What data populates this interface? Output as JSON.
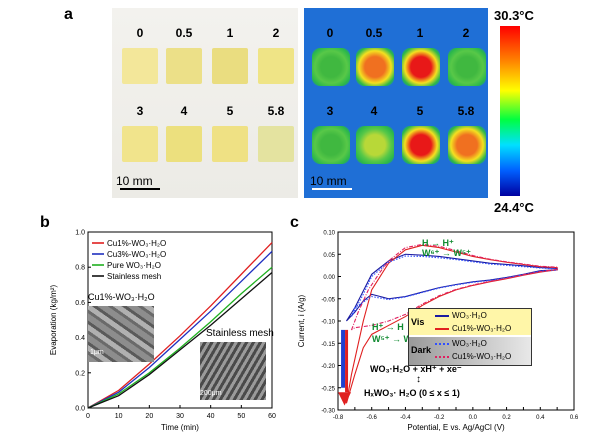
{
  "panel_a": {
    "label": "a",
    "photo_samples": [
      {
        "label": "0"
      },
      {
        "label": "0.5"
      },
      {
        "label": "1"
      },
      {
        "label": "2"
      },
      {
        "label": "3"
      },
      {
        "label": "4"
      },
      {
        "label": "5"
      },
      {
        "label": "5.8"
      }
    ],
    "photo_scalebar": "10 mm",
    "thermal_samples": [
      {
        "label": "0",
        "heat": 0.35
      },
      {
        "label": "0.5",
        "heat": 0.8
      },
      {
        "label": "1",
        "heat": 0.95
      },
      {
        "label": "2",
        "heat": 0.3
      },
      {
        "label": "3",
        "heat": 0.4
      },
      {
        "label": "4",
        "heat": 0.5
      },
      {
        "label": "5",
        "heat": 1.0
      },
      {
        "label": "5.8",
        "heat": 0.7
      }
    ],
    "thermal_scalebar": "10 mm",
    "colorbar_max": "30.3°C",
    "colorbar_min": "24.4°C"
  },
  "panel_b": {
    "label": "b",
    "inset1_title": "Cu1%-WO₃·H₂O",
    "inset1_scale": "1μm",
    "inset2_title": "Stainless mesh",
    "inset2_scale": "200μm"
  },
  "panel_c": {
    "label": "c",
    "reaction_top1": "H → H⁺",
    "reaction_top2": "W⁶⁺ → W⁵⁺",
    "reaction_mid1": "H⁺ → H",
    "reaction_mid2": "W⁵⁺ → W⁶⁺",
    "legend_vis": "Vis",
    "legend_dark": "Dark",
    "equation1": "WO₃·H₂O + xH⁺ + xe⁻",
    "equation_arrow": "↕",
    "equation2": "HₓWO₃· H₂O (0 ≤ x ≤ 1)"
  },
  "chart_data": [
    {
      "type": "line",
      "xlabel": "Time (min)",
      "ylabel": "Evaporation (kg/m²)",
      "xlim": [
        0,
        60
      ],
      "ylim": [
        0,
        1.0
      ],
      "x_ticks": [
        0,
        10,
        20,
        30,
        40,
        50,
        60
      ],
      "y_ticks": [
        0.0,
        0.2,
        0.4,
        0.6,
        0.8,
        1.0
      ],
      "legend_position": "top-left",
      "series": [
        {
          "name": "Cu1%-WO₃·H₂O",
          "color": "#e02020",
          "x": [
            0,
            10,
            20,
            30,
            40,
            50,
            60
          ],
          "y": [
            0,
            0.1,
            0.25,
            0.41,
            0.58,
            0.76,
            0.94
          ]
        },
        {
          "name": "Cu3%-WO₃·H₂O",
          "color": "#2030c0",
          "x": [
            0,
            10,
            20,
            30,
            40,
            50,
            60
          ],
          "y": [
            0,
            0.09,
            0.23,
            0.39,
            0.55,
            0.72,
            0.89
          ]
        },
        {
          "name": "Pure WO₃·H₂O",
          "color": "#20b020",
          "x": [
            0,
            10,
            20,
            30,
            40,
            50,
            60
          ],
          "y": [
            0,
            0.08,
            0.2,
            0.34,
            0.49,
            0.65,
            0.8
          ]
        },
        {
          "name": "Stainless mesh",
          "color": "#111111",
          "x": [
            0,
            10,
            20,
            30,
            40,
            50,
            60
          ],
          "y": [
            0,
            0.07,
            0.19,
            0.33,
            0.47,
            0.62,
            0.77
          ]
        }
      ]
    },
    {
      "type": "line",
      "xlabel": "Potential, E vs. Ag/AgCl (V)",
      "ylabel": "Current, i (A/g)",
      "xlim": [
        -0.8,
        0.6
      ],
      "ylim": [
        -0.3,
        0.1
      ],
      "x_ticks": [
        -0.8,
        -0.7,
        -0.6,
        -0.5,
        -0.4,
        -0.3,
        -0.2,
        -0.1,
        0.0,
        0.1,
        0.2,
        0.3,
        0.4,
        0.5,
        0.6
      ],
      "x_tick_labels": [
        "-0.8",
        "-0.7",
        "-0.6",
        "-0.5",
        "-0.4",
        "-0.3",
        "-0.2",
        "-0.1",
        "0.0",
        "0.1",
        "0.2",
        "0.3",
        "0.4",
        "0.5",
        "0.6"
      ],
      "y_ticks": [
        0.1,
        0.05,
        0.0,
        -0.05,
        -0.1,
        -0.15,
        -0.2,
        -0.25,
        -0.3
      ],
      "y_tick_labels": [
        "0.10",
        "0.05",
        "0.00",
        "-0.05",
        "-0.10",
        "-0.15",
        "-0.20",
        "-0.25",
        "-0.30"
      ],
      "series": [
        {
          "name": "WO₃·H₂O",
          "group": "Vis",
          "color": "#1a1aa0",
          "dash": "solid",
          "x": [
            -0.75,
            -0.7,
            -0.6,
            -0.5,
            -0.4,
            -0.3,
            -0.2,
            -0.1,
            0.0,
            0.1,
            0.2,
            0.3,
            0.4,
            0.5,
            0.5,
            0.4,
            0.3,
            0.2,
            0.1,
            0.0,
            -0.1,
            -0.2,
            -0.3,
            -0.4,
            -0.5,
            -0.55,
            -0.6,
            -0.65,
            -0.7,
            -0.75
          ],
          "y": [
            -0.1,
            -0.07,
            0.005,
            0.035,
            0.05,
            0.048,
            0.045,
            0.04,
            0.035,
            0.03,
            0.027,
            0.024,
            0.02,
            0.018,
            0.015,
            0.013,
            0.005,
            -0.002,
            -0.008,
            -0.012,
            -0.018,
            -0.025,
            -0.035,
            -0.045,
            -0.05,
            -0.045,
            -0.04,
            -0.055,
            -0.08,
            -0.1
          ]
        },
        {
          "name": "Cu1%-WO₃·H₂O",
          "group": "Vis",
          "color": "#e02020",
          "dash": "solid",
          "x": [
            -0.75,
            -0.72,
            -0.65,
            -0.6,
            -0.5,
            -0.4,
            -0.3,
            -0.2,
            -0.1,
            0.0,
            0.1,
            0.2,
            0.3,
            0.4,
            0.5,
            0.5,
            0.4,
            0.3,
            0.2,
            0.1,
            0.0,
            -0.1,
            -0.2,
            -0.3,
            -0.4,
            -0.5,
            -0.55,
            -0.6,
            -0.65,
            -0.7,
            -0.75
          ],
          "y": [
            -0.285,
            -0.22,
            -0.1,
            -0.03,
            0.03,
            0.06,
            0.07,
            0.065,
            0.055,
            0.045,
            0.038,
            0.032,
            0.027,
            0.022,
            0.02,
            0.015,
            0.01,
            0.003,
            -0.005,
            -0.012,
            -0.02,
            -0.03,
            -0.045,
            -0.065,
            -0.09,
            -0.11,
            -0.12,
            -0.13,
            -0.16,
            -0.22,
            -0.285
          ]
        },
        {
          "name": "WO₃·H₂O",
          "group": "Dark",
          "color": "#3050ff",
          "dash": "dotted",
          "x": [
            -0.72,
            -0.65,
            -0.6,
            -0.5,
            -0.4,
            -0.3,
            -0.2,
            -0.1,
            0.0,
            0.1,
            0.2,
            0.3,
            0.4,
            0.5,
            0.5,
            0.4,
            0.3,
            0.2,
            0.1,
            0.0,
            -0.1,
            -0.2,
            -0.3,
            -0.4,
            -0.5,
            -0.6,
            -0.7,
            -0.72
          ],
          "y": [
            -0.09,
            -0.04,
            0.0,
            0.032,
            0.046,
            0.045,
            0.042,
            0.038,
            0.033,
            0.028,
            0.025,
            0.022,
            0.019,
            0.017,
            0.014,
            0.012,
            0.004,
            -0.003,
            -0.009,
            -0.013,
            -0.019,
            -0.026,
            -0.036,
            -0.046,
            -0.052,
            -0.045,
            -0.07,
            -0.09
          ]
        },
        {
          "name": "Cu1%-WO₃·H₂O",
          "group": "Dark",
          "color": "#e02060",
          "dash": "dashdot",
          "x": [
            -0.72,
            -0.68,
            -0.62,
            -0.55,
            -0.5,
            -0.4,
            -0.3,
            -0.2,
            -0.1,
            0.0,
            0.1,
            0.2,
            0.3,
            0.4,
            0.5,
            0.5,
            0.4,
            0.3,
            0.2,
            0.1,
            0.0,
            -0.1,
            -0.2,
            -0.3,
            -0.4,
            -0.5,
            -0.6,
            -0.7,
            -0.72
          ],
          "y": [
            -0.12,
            -0.08,
            -0.03,
            0.01,
            0.035,
            0.065,
            0.072,
            0.068,
            0.058,
            0.047,
            0.039,
            0.033,
            0.028,
            0.023,
            0.021,
            0.016,
            0.011,
            0.004,
            -0.004,
            -0.011,
            -0.019,
            -0.029,
            -0.043,
            -0.062,
            -0.085,
            -0.1,
            -0.11,
            -0.115,
            -0.12
          ]
        }
      ]
    }
  ]
}
